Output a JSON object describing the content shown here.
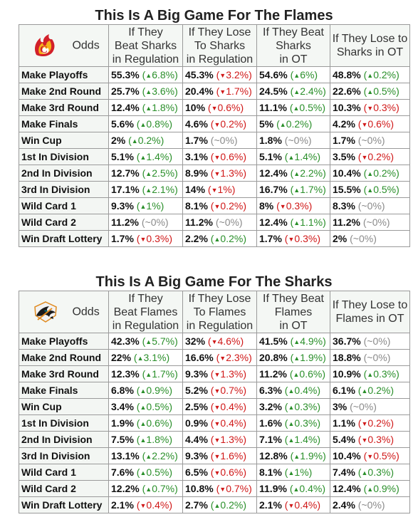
{
  "sections": [
    {
      "title": "This Is A Big Game For The Flames",
      "logo_icon": "flames-logo-icon",
      "odds_label": "Odds",
      "columns": [
        [
          "If They",
          "Beat Sharks",
          "in Regulation"
        ],
        [
          "If They Lose",
          "To Sharks",
          "in Regulation"
        ],
        [
          "If They Beat",
          "Sharks",
          "in OT"
        ],
        [
          "If They Lose to",
          "Sharks in OT"
        ]
      ],
      "rows": [
        {
          "label": "Make Playoffs",
          "cells": [
            {
              "value": "55.3%",
              "change": "6.8%",
              "dir": "up"
            },
            {
              "value": "45.3%",
              "change": "3.2%",
              "dir": "down"
            },
            {
              "value": "54.6%",
              "change": "6%",
              "dir": "up"
            },
            {
              "value": "48.8%",
              "change": "0.2%",
              "dir": "up"
            }
          ]
        },
        {
          "label": "Make 2nd Round",
          "cells": [
            {
              "value": "25.7%",
              "change": "3.6%",
              "dir": "up"
            },
            {
              "value": "20.4%",
              "change": "1.7%",
              "dir": "down"
            },
            {
              "value": "24.5%",
              "change": "2.4%",
              "dir": "up"
            },
            {
              "value": "22.6%",
              "change": "0.5%",
              "dir": "up"
            }
          ]
        },
        {
          "label": "Make 3rd Round",
          "cells": [
            {
              "value": "12.4%",
              "change": "1.8%",
              "dir": "up"
            },
            {
              "value": "10%",
              "change": "0.6%",
              "dir": "down"
            },
            {
              "value": "11.1%",
              "change": "0.5%",
              "dir": "up"
            },
            {
              "value": "10.3%",
              "change": "0.3%",
              "dir": "down"
            }
          ]
        },
        {
          "label": "Make Finals",
          "cells": [
            {
              "value": "5.6%",
              "change": "0.8%",
              "dir": "up"
            },
            {
              "value": "4.6%",
              "change": "0.2%",
              "dir": "down"
            },
            {
              "value": "5%",
              "change": "0.2%",
              "dir": "up"
            },
            {
              "value": "4.2%",
              "change": "0.6%",
              "dir": "down"
            }
          ]
        },
        {
          "label": "Win Cup",
          "cells": [
            {
              "value": "2%",
              "change": "0.2%",
              "dir": "up"
            },
            {
              "value": "1.7%",
              "change": "0%",
              "dir": "flat"
            },
            {
              "value": "1.8%",
              "change": "0%",
              "dir": "flat"
            },
            {
              "value": "1.7%",
              "change": "0%",
              "dir": "flat"
            }
          ]
        },
        {
          "label": "1st In Division",
          "cells": [
            {
              "value": "5.1%",
              "change": "1.4%",
              "dir": "up"
            },
            {
              "value": "3.1%",
              "change": "0.6%",
              "dir": "down"
            },
            {
              "value": "5.1%",
              "change": "1.4%",
              "dir": "up"
            },
            {
              "value": "3.5%",
              "change": "0.2%",
              "dir": "down"
            }
          ]
        },
        {
          "label": "2nd In Division",
          "cells": [
            {
              "value": "12.7%",
              "change": "2.5%",
              "dir": "up"
            },
            {
              "value": "8.9%",
              "change": "1.3%",
              "dir": "down"
            },
            {
              "value": "12.4%",
              "change": "2.2%",
              "dir": "up"
            },
            {
              "value": "10.4%",
              "change": "0.2%",
              "dir": "up"
            }
          ]
        },
        {
          "label": "3rd In Division",
          "cells": [
            {
              "value": "17.1%",
              "change": "2.1%",
              "dir": "up"
            },
            {
              "value": "14%",
              "change": "1%",
              "dir": "down"
            },
            {
              "value": "16.7%",
              "change": "1.7%",
              "dir": "up"
            },
            {
              "value": "15.5%",
              "change": "0.5%",
              "dir": "up"
            }
          ]
        },
        {
          "label": "Wild Card 1",
          "cells": [
            {
              "value": "9.3%",
              "change": "1%",
              "dir": "up"
            },
            {
              "value": "8.1%",
              "change": "0.2%",
              "dir": "down"
            },
            {
              "value": "8%",
              "change": "0.3%",
              "dir": "down"
            },
            {
              "value": "8.3%",
              "change": "0%",
              "dir": "flat"
            }
          ]
        },
        {
          "label": "Wild Card 2",
          "cells": [
            {
              "value": "11.2%",
              "change": "0%",
              "dir": "flat"
            },
            {
              "value": "11.2%",
              "change": "0%",
              "dir": "flat"
            },
            {
              "value": "12.4%",
              "change": "1.1%",
              "dir": "up"
            },
            {
              "value": "11.2%",
              "change": "0%",
              "dir": "flat"
            }
          ]
        },
        {
          "label": "Win Draft Lottery",
          "cells": [
            {
              "value": "1.7%",
              "change": "0.3%",
              "dir": "down"
            },
            {
              "value": "2.2%",
              "change": "0.2%",
              "dir": "up"
            },
            {
              "value": "1.7%",
              "change": "0.3%",
              "dir": "down"
            },
            {
              "value": "2%",
              "change": "0%",
              "dir": "flat"
            }
          ]
        }
      ]
    },
    {
      "title": "This Is A Big Game For The Sharks",
      "logo_icon": "sharks-logo-icon",
      "odds_label": "Odds",
      "columns": [
        [
          "If They",
          "Beat Flames",
          "in Regulation"
        ],
        [
          "If They Lose",
          "To Flames",
          "in Regulation"
        ],
        [
          "If They Beat",
          "Flames",
          "in OT"
        ],
        [
          "If They Lose to",
          "Flames in OT"
        ]
      ],
      "rows": [
        {
          "label": "Make Playoffs",
          "cells": [
            {
              "value": "42.3%",
              "change": "5.7%",
              "dir": "up"
            },
            {
              "value": "32%",
              "change": "4.6%",
              "dir": "down"
            },
            {
              "value": "41.5%",
              "change": "4.9%",
              "dir": "up"
            },
            {
              "value": "36.7%",
              "change": "0%",
              "dir": "flat"
            }
          ]
        },
        {
          "label": "Make 2nd Round",
          "cells": [
            {
              "value": "22%",
              "change": "3.1%",
              "dir": "up"
            },
            {
              "value": "16.6%",
              "change": "2.3%",
              "dir": "down"
            },
            {
              "value": "20.8%",
              "change": "1.9%",
              "dir": "up"
            },
            {
              "value": "18.8%",
              "change": "0%",
              "dir": "flat"
            }
          ]
        },
        {
          "label": "Make 3rd Round",
          "cells": [
            {
              "value": "12.3%",
              "change": "1.7%",
              "dir": "up"
            },
            {
              "value": "9.3%",
              "change": "1.3%",
              "dir": "down"
            },
            {
              "value": "11.2%",
              "change": "0.6%",
              "dir": "up"
            },
            {
              "value": "10.9%",
              "change": "0.3%",
              "dir": "up"
            }
          ]
        },
        {
          "label": "Make Finals",
          "cells": [
            {
              "value": "6.8%",
              "change": "0.9%",
              "dir": "up"
            },
            {
              "value": "5.2%",
              "change": "0.7%",
              "dir": "down"
            },
            {
              "value": "6.3%",
              "change": "0.4%",
              "dir": "up"
            },
            {
              "value": "6.1%",
              "change": "0.2%",
              "dir": "up"
            }
          ]
        },
        {
          "label": "Win Cup",
          "cells": [
            {
              "value": "3.4%",
              "change": "0.5%",
              "dir": "up"
            },
            {
              "value": "2.5%",
              "change": "0.4%",
              "dir": "down"
            },
            {
              "value": "3.2%",
              "change": "0.3%",
              "dir": "up"
            },
            {
              "value": "3%",
              "change": "0%",
              "dir": "flat"
            }
          ]
        },
        {
          "label": "1st In Division",
          "cells": [
            {
              "value": "1.9%",
              "change": "0.6%",
              "dir": "up"
            },
            {
              "value": "0.9%",
              "change": "0.4%",
              "dir": "down"
            },
            {
              "value": "1.6%",
              "change": "0.3%",
              "dir": "up"
            },
            {
              "value": "1.1%",
              "change": "0.2%",
              "dir": "down"
            }
          ]
        },
        {
          "label": "2nd In Division",
          "cells": [
            {
              "value": "7.5%",
              "change": "1.8%",
              "dir": "up"
            },
            {
              "value": "4.4%",
              "change": "1.3%",
              "dir": "down"
            },
            {
              "value": "7.1%",
              "change": "1.4%",
              "dir": "up"
            },
            {
              "value": "5.4%",
              "change": "0.3%",
              "dir": "down"
            }
          ]
        },
        {
          "label": "3rd In Division",
          "cells": [
            {
              "value": "13.1%",
              "change": "2.2%",
              "dir": "up"
            },
            {
              "value": "9.3%",
              "change": "1.6%",
              "dir": "down"
            },
            {
              "value": "12.8%",
              "change": "1.9%",
              "dir": "up"
            },
            {
              "value": "10.4%",
              "change": "0.5%",
              "dir": "down"
            }
          ]
        },
        {
          "label": "Wild Card 1",
          "cells": [
            {
              "value": "7.6%",
              "change": "0.5%",
              "dir": "up"
            },
            {
              "value": "6.5%",
              "change": "0.6%",
              "dir": "down"
            },
            {
              "value": "8.1%",
              "change": "1%",
              "dir": "up"
            },
            {
              "value": "7.4%",
              "change": "0.3%",
              "dir": "up"
            }
          ]
        },
        {
          "label": "Wild Card 2",
          "cells": [
            {
              "value": "12.2%",
              "change": "0.7%",
              "dir": "up"
            },
            {
              "value": "10.8%",
              "change": "0.7%",
              "dir": "down"
            },
            {
              "value": "11.9%",
              "change": "0.4%",
              "dir": "up"
            },
            {
              "value": "12.4%",
              "change": "0.9%",
              "dir": "up"
            }
          ]
        },
        {
          "label": "Win Draft Lottery",
          "cells": [
            {
              "value": "2.1%",
              "change": "0.4%",
              "dir": "down"
            },
            {
              "value": "2.7%",
              "change": "0.2%",
              "dir": "up"
            },
            {
              "value": "2.1%",
              "change": "0.4%",
              "dir": "down"
            },
            {
              "value": "2.4%",
              "change": "0%",
              "dir": "flat"
            }
          ]
        }
      ]
    }
  ],
  "colors": {
    "up": "#2a8f2a",
    "down": "#d01818",
    "flat": "#8a8a8a"
  }
}
